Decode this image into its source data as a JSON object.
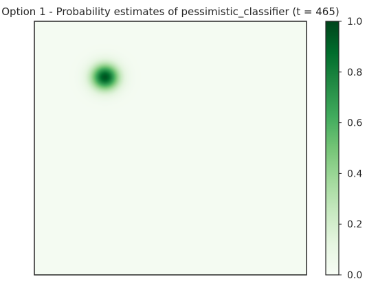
{
  "chart_data": {
    "type": "heatmap",
    "title": "Option 1 - Probability estimates of pessimistic_classifier (t = 465)",
    "xlabel": "",
    "ylabel": "",
    "x_ticks_visible": false,
    "y_ticks_visible": false,
    "grid": false,
    "colormap": "Greens",
    "colormap_stops": [
      "#f7fcf5",
      "#e5f5e0",
      "#c7e9c0",
      "#a1d99b",
      "#74c476",
      "#41ab5d",
      "#238b45",
      "#006d2c",
      "#00441b"
    ],
    "value_range": [
      0,
      1
    ],
    "background_value": 0.02,
    "hotspots": [
      {
        "x": 0.26,
        "y": 0.78,
        "peak": 0.95,
        "spread": 0.035
      }
    ],
    "colorbar": {
      "ticks": [
        0.0,
        0.2,
        0.4,
        0.6,
        0.8,
        1.0
      ],
      "tick_labels": [
        "0.0",
        "0.2",
        "0.4",
        "0.6",
        "0.8",
        "1.0"
      ]
    }
  }
}
